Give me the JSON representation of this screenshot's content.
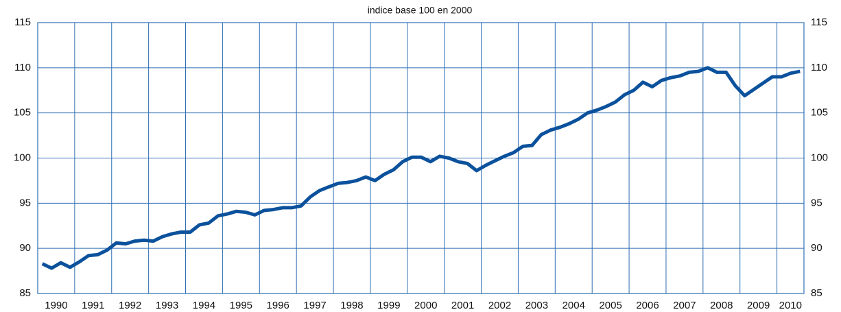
{
  "chart_data": {
    "type": "line",
    "title": "indice base 100 en 2000",
    "categories": [
      "1990",
      null,
      null,
      null,
      "1991",
      null,
      null,
      null,
      "1992",
      null,
      null,
      null,
      "1993",
      null,
      null,
      null,
      "1994",
      null,
      null,
      null,
      "1995",
      null,
      null,
      null,
      "1996",
      null,
      null,
      null,
      "1997",
      null,
      null,
      null,
      "1998",
      null,
      null,
      null,
      "1999",
      null,
      null,
      null,
      "2000",
      null,
      null,
      null,
      "2001",
      null,
      null,
      null,
      "2002",
      null,
      null,
      null,
      "2003",
      null,
      null,
      null,
      "2004",
      null,
      null,
      null,
      "2005",
      null,
      null,
      null,
      "2006",
      null,
      null,
      null,
      "2007",
      null,
      null,
      null,
      "2008",
      null,
      null,
      null,
      "2009",
      null,
      null,
      null,
      "2010",
      null,
      null
    ],
    "values": [
      88.3,
      87.8,
      88.4,
      87.9,
      88.5,
      89.2,
      89.3,
      89.8,
      90.6,
      90.5,
      90.8,
      90.9,
      90.8,
      91.3,
      91.6,
      91.8,
      91.8,
      92.6,
      92.8,
      93.6,
      93.8,
      94.1,
      94.0,
      93.7,
      94.2,
      94.3,
      94.5,
      94.5,
      94.7,
      95.7,
      96.4,
      96.8,
      97.2,
      97.3,
      97.5,
      97.9,
      97.5,
      98.2,
      98.7,
      99.6,
      100.1,
      100.1,
      99.6,
      100.2,
      100.0,
      99.6,
      99.4,
      98.6,
      99.2,
      99.7,
      100.2,
      100.6,
      101.3,
      101.4,
      102.6,
      103.1,
      103.4,
      103.8,
      104.3,
      105.0,
      105.3,
      105.7,
      106.2,
      107.0,
      107.5,
      108.4,
      107.9,
      108.6,
      108.9,
      109.1,
      109.5,
      109.6,
      110.0,
      109.5,
      109.5,
      108.0,
      106.9,
      107.6,
      108.3,
      109.0,
      109.0,
      109.4,
      109.6
    ],
    "color": "#0b519c",
    "ylim": [
      85,
      115
    ],
    "yticks": [
      85,
      90,
      95,
      100,
      105,
      110,
      115
    ],
    "grid": true,
    "right_axis": true
  }
}
